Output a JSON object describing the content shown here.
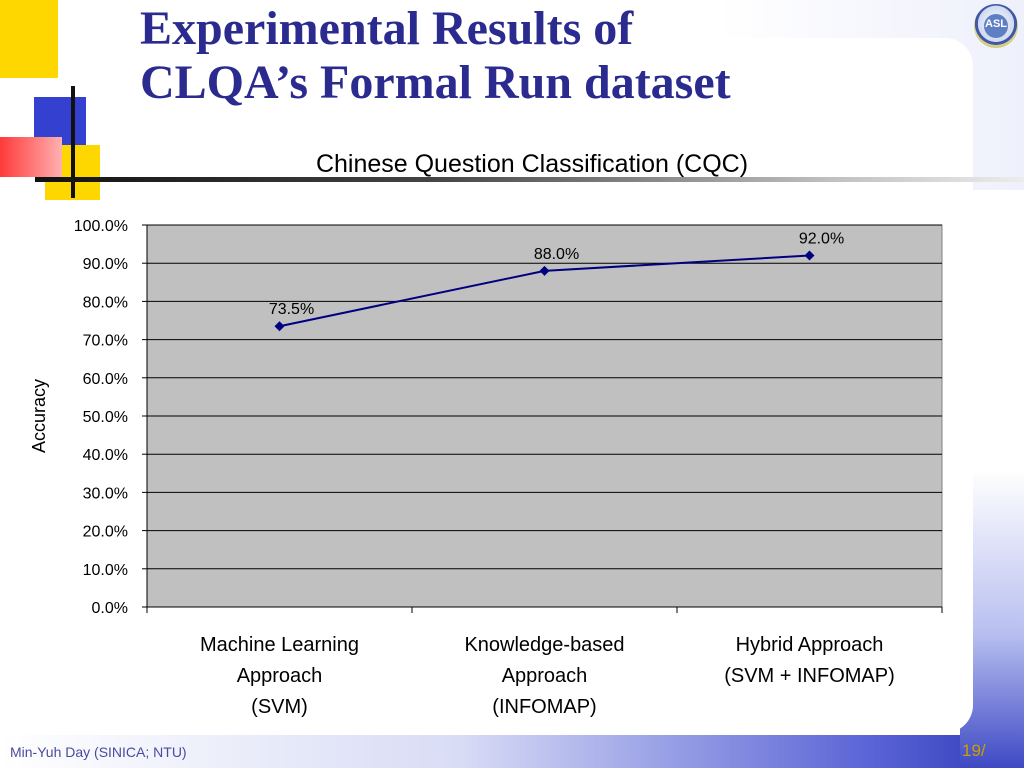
{
  "slide": {
    "title_line1": "Experimental Results of",
    "title_line2": "CLQA’s Formal Run dataset",
    "footer_author": "Min-Yuh Day (SINICA; NTU)",
    "page_number": "19/",
    "logo_text": "ASL"
  },
  "colors": {
    "title": "#2b2b8f",
    "series_line": "#000080",
    "plot_background": "#c0c0c0",
    "footer_page": "#c8a000"
  },
  "chart_data": {
    "type": "line",
    "title": "Chinese Question Classification (CQC)",
    "xlabel": "",
    "ylabel": "Accuracy",
    "categories": [
      [
        "Machine Learning",
        "Approach",
        "(SVM)"
      ],
      [
        "Knowledge-based",
        "Approach",
        "(INFOMAP)"
      ],
      [
        "Hybrid Approach",
        "(SVM + INFOMAP)"
      ]
    ],
    "series": [
      {
        "values": [
          73.5,
          88.0,
          92.0
        ]
      }
    ],
    "data_labels": [
      "73.5%",
      "88.0%",
      "92.0%"
    ],
    "ylim": [
      0,
      100
    ],
    "yticks": [
      "0.0%",
      "10.0%",
      "20.0%",
      "30.0%",
      "40.0%",
      "50.0%",
      "60.0%",
      "70.0%",
      "80.0%",
      "90.0%",
      "100.0%"
    ],
    "grid": true,
    "legend": "none"
  }
}
